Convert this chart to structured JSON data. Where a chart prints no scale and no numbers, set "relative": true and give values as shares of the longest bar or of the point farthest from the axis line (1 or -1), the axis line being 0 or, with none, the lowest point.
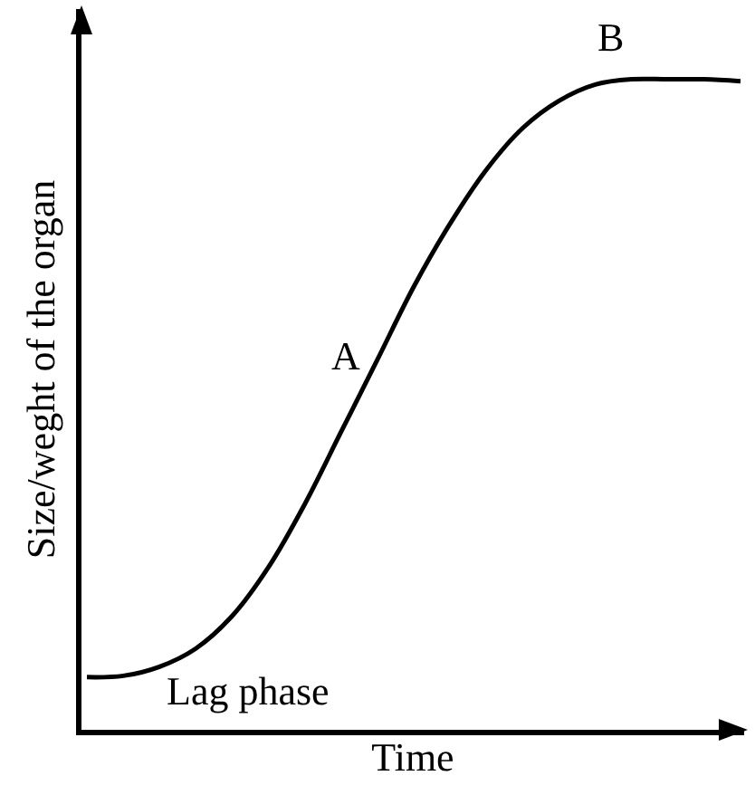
{
  "chart_data": {
    "type": "line",
    "relative": true,
    "xlabel": "Time",
    "ylabel": "Size/weght of the organ",
    "color": "#000000",
    "categories": [
      null,
      null,
      null,
      null,
      null,
      null,
      null,
      null,
      null,
      null,
      null,
      null,
      null,
      null,
      null,
      null,
      null,
      null,
      null
    ],
    "values": [
      0.081,
      0.083,
      0.097,
      0.125,
      0.175,
      0.25,
      0.347,
      0.458,
      0.569,
      0.681,
      0.778,
      0.861,
      0.925,
      0.967,
      0.992,
      1.0,
      1.0,
      1.0,
      0.997
    ],
    "annotations": [
      "A",
      "B",
      "Lag phase"
    ]
  }
}
